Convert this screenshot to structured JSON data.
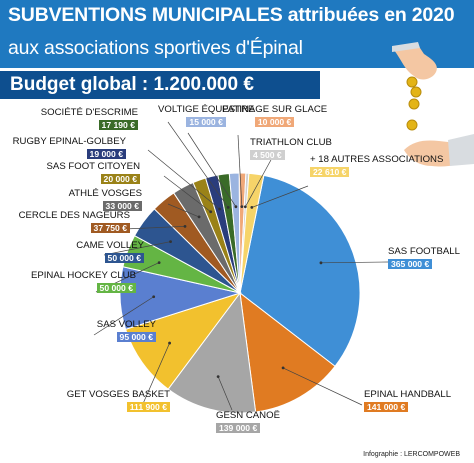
{
  "header": {
    "title_line1": "SUBVENTIONS MUNICIPALES attribuées en 2020",
    "title_line2": "aux associations sportives d'Épinal",
    "budget": "Budget global : 1.200.000 €"
  },
  "credit": "Infographie : LERCOMPOWEB",
  "chart_data": {
    "type": "pie",
    "title": "SUBVENTIONS MUNICIPALES attribuées en 2020 aux associations sportives d'Épinal",
    "total": "Budget global : 1.200.000 €",
    "slices": [
      {
        "label": "SAS FOOTBALL",
        "value": 365000,
        "display": "365 000 €",
        "color": "#3f8fd6"
      },
      {
        "label": "EPINAL HANDBALL",
        "value": 141000,
        "display": "141 000 €",
        "color": "#e07b22"
      },
      {
        "label": "GESN CANOË",
        "value": 139000,
        "display": "139 000 €",
        "color": "#a6a6a6"
      },
      {
        "label": "GET VOSGES BASKET",
        "value": 111900,
        "display": "111 900 €",
        "color": "#f2c12e"
      },
      {
        "label": "SAS VOLLEY",
        "value": 95000,
        "display": "95 000 €",
        "color": "#5a7fd0"
      },
      {
        "label": "EPINAL HOCKEY CLUB",
        "value": 50000,
        "display": "50 000 €",
        "color": "#64b544"
      },
      {
        "label": "CAME VOLLEY",
        "value": 50000,
        "display": "50 000 €",
        "color": "#2d5590"
      },
      {
        "label": "CERCLE DES NAGEURS",
        "value": 37750,
        "display": "37 750 €",
        "color": "#a05a22"
      },
      {
        "label": "ATHLÉ VOSGES",
        "value": 33000,
        "display": "33 000 €",
        "color": "#6b6b6b"
      },
      {
        "label": "SAS FOOT CITOYEN",
        "value": 20000,
        "display": "20 000 €",
        "color": "#9a8218"
      },
      {
        "label": "RUGBY EPINAL-GOLBEY",
        "value": 19000,
        "display": "19 000 €",
        "color": "#2a3d7c"
      },
      {
        "label": "SOCIÉTÉ D'ESCRIME",
        "value": 17190,
        "display": "17 190 €",
        "color": "#3a6b28"
      },
      {
        "label": "VOLTIGE ÉQUESTRE",
        "value": 15000,
        "display": "15 000 €",
        "color": "#9bb4e0"
      },
      {
        "label": "PATINAGE SUR GLACE",
        "value": 10000,
        "display": "10 000 €",
        "color": "#f0a878"
      },
      {
        "label": "TRIATHLON CLUB",
        "value": 4500,
        "display": "4 500 €",
        "color": "#cfcfcf"
      },
      {
        "label": "+ 18 AUTRES ASSOCIATIONS",
        "value": 22610,
        "display": "22 610 €",
        "color": "#f6d469"
      }
    ]
  }
}
